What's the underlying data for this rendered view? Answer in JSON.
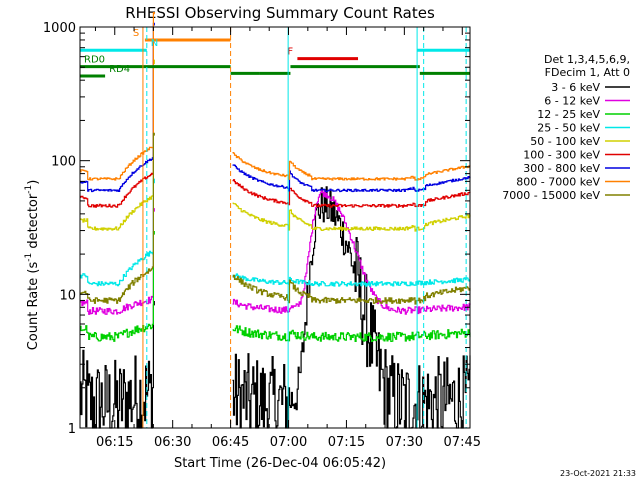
{
  "chart_data": {
    "type": "line",
    "title": "RHESSI Observing Summary Count Rates",
    "xlabel": "Start Time (26-Dec-04 06:05:42)",
    "ylabel_main": "Count Rate (s",
    "ylabel_sup1": "-1",
    "ylabel_mid": " detector",
    "ylabel_sup2": "-1",
    "ylabel_end": ")",
    "footer_date": "23-Oct-2021 21:33",
    "y_scale": "log",
    "ylim": [
      1,
      1000
    ],
    "xlim_minutes": [
      6.0,
      107.0
    ],
    "x_ticks": [
      {
        "m": 15,
        "label": "06:15"
      },
      {
        "m": 30,
        "label": "06:30"
      },
      {
        "m": 45,
        "label": "06:45"
      },
      {
        "m": 60,
        "label": "07:00"
      },
      {
        "m": 75,
        "label": "07:15"
      },
      {
        "m": 90,
        "label": "07:30"
      },
      {
        "m": 105,
        "label": "07:45"
      }
    ],
    "y_ticks": [
      {
        "v": 1,
        "label": "1"
      },
      {
        "v": 10,
        "label": "10"
      },
      {
        "v": 100,
        "label": "100"
      },
      {
        "v": 1000,
        "label": "1000"
      }
    ],
    "legend_header": [
      "Det 1,3,4,5,6,9,",
      "FDecim 1, Att 0"
    ],
    "series": [
      {
        "name": "3 - 6 keV",
        "color": "#000000",
        "level": 1.5,
        "noise": 0.35
      },
      {
        "name": "6 - 12 keV",
        "color": "#e000e0",
        "level": 7.5,
        "noise": 0.06
      },
      {
        "name": "12 - 25 keV",
        "color": "#00d000",
        "level": 4.8,
        "noise": 0.08
      },
      {
        "name": "25 - 50 keV",
        "color": "#00e8e8",
        "level": 12,
        "noise": 0.04
      },
      {
        "name": "50 - 100 keV",
        "color": "#d0d000",
        "level": 31,
        "noise": 0.03
      },
      {
        "name": "100 - 300 keV",
        "color": "#e00000",
        "level": 46,
        "noise": 0.025
      },
      {
        "name": "300 - 800 keV",
        "color": "#0000e0",
        "level": 60,
        "noise": 0.02
      },
      {
        "name": "800 - 7000 keV",
        "color": "#ff8000",
        "level": 73,
        "noise": 0.02
      },
      {
        "name": "7000 - 15000 keV",
        "color": "#808000",
        "level": 9,
        "noise": 0.05
      }
    ],
    "data_gap_minutes": [
      [
        25,
        45
      ]
    ],
    "flare_peak": {
      "minute": 68.5,
      "value_6_12": 50,
      "value_3_6": 45
    },
    "annotations": {
      "S": {
        "label": "S",
        "color": "#ff8000",
        "start_m": 22.8,
        "end_m": 45.0,
        "level": 800
      },
      "N": {
        "label": "N",
        "color": "#00e8e8",
        "start_m": 6.0,
        "end_m": 23.3,
        "level": 670,
        "start2_m": 93.3,
        "end2_m": 107,
        "level2": 670
      },
      "F": {
        "label": "F",
        "color": "#e00000",
        "start_m": 62.3,
        "end_m": 78.0,
        "level": 580
      },
      "RD0": {
        "label": "RD0",
        "color": "#008000",
        "start_m": 6.0,
        "end_m": 45.0,
        "level": 505,
        "extra": [
          [
            52.5,
            60.5
          ],
          [
            60.5,
            94.0
          ]
        ]
      },
      "RD4": {
        "label": "RD4",
        "color": "#008000",
        "start_m": 6.0,
        "end_m": 12.5,
        "level": 430,
        "extra": [
          [
            45.0,
            52.5
          ],
          [
            94.0,
            107
          ]
        ]
      }
    },
    "vlines": [
      {
        "m": 23.3,
        "color": "#00e8e8",
        "dash": true
      },
      {
        "m": 22.3,
        "color": "#ff8000",
        "dash": false
      },
      {
        "m": 45.0,
        "color": "#ff8000",
        "dash": true
      },
      {
        "m": 59.9,
        "color": "#00e8e8",
        "dash": false
      },
      {
        "m": 93.3,
        "color": "#00e8e8",
        "dash": false
      },
      {
        "m": 95.0,
        "color": "#00e8e8",
        "dash": true
      },
      {
        "m": 106.0,
        "color": "#00e8e8",
        "dash": true
      }
    ]
  }
}
